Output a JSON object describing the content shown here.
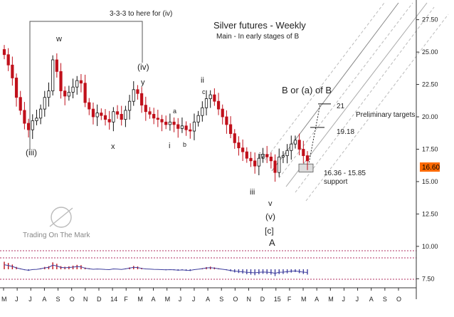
{
  "chart_data": {
    "type": "candlestick",
    "title": "Silver futures - Weekly",
    "subtitle": "Main - In early stages of B",
    "watermark": "Trading On The Mark",
    "x_ticks": [
      "M",
      "J",
      "J",
      "A",
      "S",
      "O",
      "N",
      "D",
      "14",
      "F",
      "M",
      "A",
      "M",
      "J",
      "J",
      "A",
      "S",
      "O",
      "N",
      "D",
      "15",
      "F",
      "M",
      "A",
      "M",
      "J",
      "J",
      "A",
      "S",
      "O"
    ],
    "y_ticks": [
      "27.50",
      "25.00",
      "22.50",
      "20.00",
      "17.50",
      "15.00",
      "12.50",
      "10.00",
      "7.50"
    ],
    "ylim": [
      6.8,
      28.8
    ],
    "last_price": "16.60",
    "closes": [
      24.8,
      24.0,
      23.0,
      21.5,
      20.5,
      19.5,
      19.0,
      19.7,
      19.9,
      20.6,
      21.5,
      22.0,
      24.4,
      23.5,
      22.0,
      21.6,
      21.9,
      22.3,
      22.8,
      22.6,
      21.1,
      20.6,
      20.0,
      20.3,
      20.1,
      19.8,
      19.6,
      20.4,
      20.2,
      19.8,
      20.5,
      21.2,
      22.1,
      21.8,
      20.9,
      20.4,
      20.2,
      19.9,
      19.8,
      19.6,
      19.4,
      19.6,
      19.4,
      19.1,
      19.3,
      19.0,
      18.9,
      19.6,
      20.1,
      20.7,
      21.4,
      21.7,
      21.2,
      20.6,
      20.0,
      19.4,
      18.7,
      18.0,
      17.6,
      17.3,
      16.8,
      16.6,
      16.2,
      16.8,
      17.1,
      16.9,
      16.6,
      15.7,
      16.9,
      17.0,
      17.4,
      17.9,
      18.2,
      17.5,
      17.0,
      16.6
    ],
    "annotations": {
      "bracket_note": "3-3-3 to here for (iv)",
      "w": "w",
      "iii_paren": "(iii)",
      "iv_paren": "(iv)",
      "y": "y",
      "x": "x",
      "a": "a",
      "i": "i",
      "b": "b",
      "ii": "ii",
      "c": "c",
      "iii": "iii",
      "iv": "iv",
      "v": "v",
      "v_paren": "(v)",
      "c_bracket": "[c]",
      "A": "A",
      "B_label": "B or (a) of B",
      "target1": "21",
      "target2": "19.18",
      "targets_note": "Preliminary targets",
      "support_range": "16.36 - 15.85",
      "support_word": "support"
    },
    "indicator_panel": {
      "type": "histogram",
      "top_level": "10.00"
    },
    "colors": {
      "up": "#ffffff",
      "down": "#c0101b",
      "channel": "#999999",
      "oscillator_up": "#c0101b",
      "oscillator_down": "#3f3f9e",
      "last_price_bg": "#ff6a00",
      "dashed_guide": "#b03060"
    }
  }
}
